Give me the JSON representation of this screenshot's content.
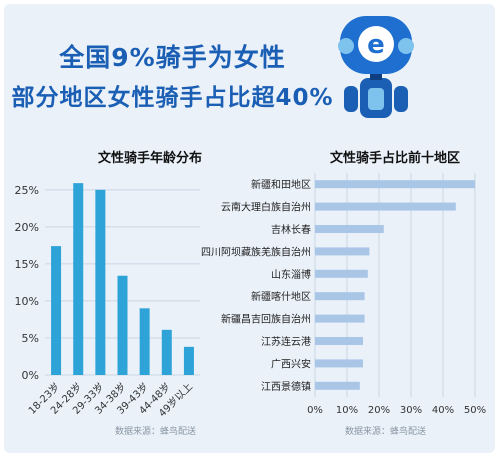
{
  "header": {
    "title": "全国9%骑手为女性",
    "subtitle": "部分地区女性骑手占比超40%"
  },
  "colors": {
    "bar_left": "#2ea3d8",
    "bar_right": "#a9c6e7",
    "brand": "#1b5fb5"
  },
  "chart_data": [
    {
      "type": "bar",
      "title": "文性骑手年龄分布",
      "categories": [
        "18-23岁",
        "24-28岁",
        "29-33岁",
        "34-38岁",
        "39-43岁",
        "44-48岁",
        "49岁以上"
      ],
      "values": [
        17.4,
        25.9,
        25.0,
        13.4,
        9.0,
        6.1,
        3.8
      ],
      "yticks": [
        "0%",
        "5%",
        "10%",
        "15%",
        "20%",
        "25%"
      ],
      "ylim": [
        0,
        27
      ],
      "source": "数据来源：蜂鸟配送"
    },
    {
      "type": "bar",
      "orientation": "horizontal",
      "title": "文性骑手占比前十地区",
      "categories": [
        "新疆和田地区",
        "云南大理白族自治州",
        "吉林长春",
        "四川阿坝藏族羌族自治州",
        "山东淄博",
        "新疆喀什地区",
        "新疆昌吉回族自治州",
        "江苏连云港",
        "广西兴安",
        "江西景德镇"
      ],
      "values": [
        50,
        44,
        21.5,
        17,
        16.5,
        15.5,
        15.5,
        15,
        15,
        14
      ],
      "xticks": [
        "0%",
        "10%",
        "20%",
        "30%",
        "40%",
        "50%"
      ],
      "xlim": [
        0,
        50
      ],
      "source": "数据来源：蜂鸟配送"
    }
  ]
}
